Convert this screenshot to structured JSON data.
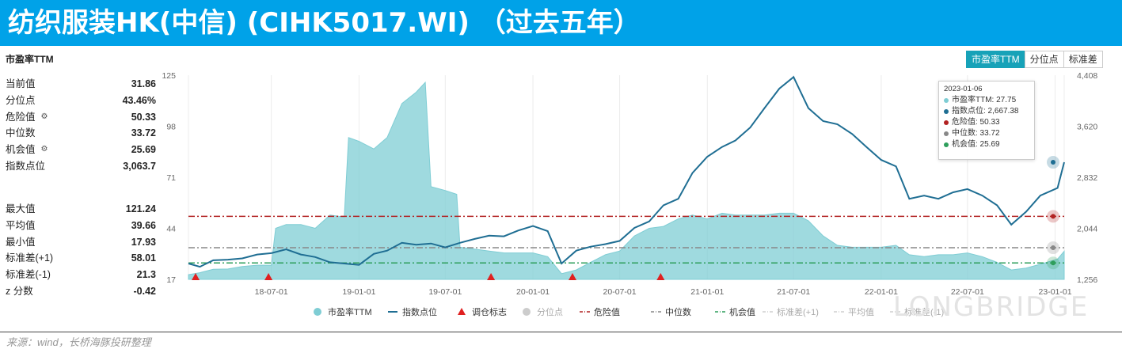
{
  "header": {
    "title": "纺织服装HK(中信) (CIHK5017.WI) （过去五年）"
  },
  "panel": {
    "title": "市盈率TTM"
  },
  "stats_top": [
    {
      "label": "当前值",
      "value": "31.86"
    },
    {
      "label": "分位点",
      "value": "43.46%"
    },
    {
      "label": "危险值",
      "value": "50.33",
      "icon": "gear-icon"
    },
    {
      "label": "中位数",
      "value": "33.72"
    },
    {
      "label": "机会值",
      "value": "25.69",
      "icon": "gear-icon"
    },
    {
      "label": "指数点位",
      "value": "3,063.7"
    }
  ],
  "stats_bottom": [
    {
      "label": "最大值",
      "value": "121.24"
    },
    {
      "label": "平均值",
      "value": "39.66"
    },
    {
      "label": "最小值",
      "value": "17.93"
    },
    {
      "label": "标准差(+1)",
      "value": "58.01"
    },
    {
      "label": "标准差(-1)",
      "value": "21.3"
    },
    {
      "label": "z 分数",
      "value": "-0.42"
    }
  ],
  "tabs": {
    "pe": "市盈率TTM",
    "pct": "分位点",
    "std": "标准差"
  },
  "tooltip": {
    "date": "2023-01-06",
    "rows": [
      {
        "label": "市盈率TTM: 27.75",
        "color": "#7fcdd4"
      },
      {
        "label": "指数点位: 2,667.38",
        "color": "#1f6e93"
      },
      {
        "label": "危险值: 50.33",
        "color": "#b22222"
      },
      {
        "label": "中位数: 33.72",
        "color": "#888888"
      },
      {
        "label": "机会值: 25.69",
        "color": "#2e9e5b"
      }
    ]
  },
  "watermark": "LONGBRIDGE",
  "source": "来源：wind，长桥海豚投研整理",
  "colors": {
    "pe": "#7fcdd4",
    "index": "#1f6e93",
    "danger": "#b22222",
    "median": "#888888",
    "chance": "#2e9e5b",
    "marker": "#e02020"
  },
  "chart_data": {
    "type": "area",
    "x_tick_labels": [
      "18-07-01",
      "19-01-01",
      "19-07-01",
      "20-01-01",
      "20-07-01",
      "21-01-01",
      "21-07-01",
      "22-01-01",
      "22-07-01",
      "23-01-01"
    ],
    "y_left_ticks": [
      "17",
      "44",
      "71",
      "98",
      "125"
    ],
    "y_left_lim": [
      17,
      125
    ],
    "y_right_ticks": [
      "1,256",
      "2,044",
      "2,832",
      "3,620",
      "4,408"
    ],
    "y_right_lim": [
      1256,
      4408
    ],
    "series": [
      {
        "name": "市盈率TTM",
        "type": "area",
        "axis": "left",
        "points": [
          [
            "2018-01-08",
            19.5
          ],
          [
            "2018-02-01",
            20.5
          ],
          [
            "2018-03-01",
            22.3
          ],
          [
            "2018-04-01",
            22.5
          ],
          [
            "2018-05-01",
            23.8
          ],
          [
            "2018-06-01",
            24.5
          ],
          [
            "2018-07-01",
            24.5
          ],
          [
            "2018-07-10",
            44
          ],
          [
            "2018-08-01",
            46
          ],
          [
            "2018-09-01",
            46
          ],
          [
            "2018-10-01",
            44
          ],
          [
            "2018-11-01",
            51
          ],
          [
            "2018-12-01",
            50
          ],
          [
            "2018-12-10",
            92
          ],
          [
            "2019-01-01",
            90
          ],
          [
            "2019-02-01",
            86
          ],
          [
            "2019-03-01",
            92
          ],
          [
            "2019-04-01",
            110
          ],
          [
            "2019-05-01",
            116
          ],
          [
            "2019-05-20",
            121.2
          ],
          [
            "2019-06-01",
            66
          ],
          [
            "2019-07-01",
            64
          ],
          [
            "2019-07-25",
            62
          ],
          [
            "2019-08-01",
            34
          ],
          [
            "2019-09-01",
            33
          ],
          [
            "2019-10-01",
            32
          ],
          [
            "2019-11-01",
            31
          ],
          [
            "2019-12-01",
            31
          ],
          [
            "2020-01-01",
            31
          ],
          [
            "2020-02-01",
            29
          ],
          [
            "2020-03-01",
            20
          ],
          [
            "2020-04-01",
            22
          ],
          [
            "2020-05-01",
            26
          ],
          [
            "2020-06-01",
            30
          ],
          [
            "2020-07-01",
            32
          ],
          [
            "2020-08-01",
            40
          ],
          [
            "2020-09-01",
            44
          ],
          [
            "2020-10-01",
            45
          ],
          [
            "2020-11-01",
            49
          ],
          [
            "2020-12-01",
            51
          ],
          [
            "2021-01-01",
            49
          ],
          [
            "2021-02-01",
            52
          ],
          [
            "2021-03-01",
            51
          ],
          [
            "2021-04-01",
            51
          ],
          [
            "2021-05-01",
            51
          ],
          [
            "2021-06-01",
            52
          ],
          [
            "2021-07-01",
            52
          ],
          [
            "2021-08-01",
            48
          ],
          [
            "2021-09-01",
            40
          ],
          [
            "2021-10-01",
            35
          ],
          [
            "2021-11-01",
            34
          ],
          [
            "2021-12-01",
            34
          ],
          [
            "2022-01-01",
            34
          ],
          [
            "2022-02-01",
            35
          ],
          [
            "2022-03-01",
            30
          ],
          [
            "2022-04-01",
            29
          ],
          [
            "2022-05-01",
            30
          ],
          [
            "2022-06-01",
            30
          ],
          [
            "2022-07-01",
            31
          ],
          [
            "2022-08-01",
            29
          ],
          [
            "2022-09-01",
            26
          ],
          [
            "2022-10-01",
            22
          ],
          [
            "2022-11-01",
            23
          ],
          [
            "2022-12-01",
            25
          ],
          [
            "2023-01-06",
            27.75
          ],
          [
            "2023-01-20",
            31.86
          ]
        ]
      },
      {
        "name": "指数点位",
        "type": "line",
        "axis": "right",
        "points": [
          [
            "2018-01-08",
            1500
          ],
          [
            "2018-02-01",
            1450
          ],
          [
            "2018-03-01",
            1550
          ],
          [
            "2018-04-01",
            1560
          ],
          [
            "2018-05-01",
            1580
          ],
          [
            "2018-06-01",
            1640
          ],
          [
            "2018-07-01",
            1660
          ],
          [
            "2018-08-01",
            1720
          ],
          [
            "2018-09-01",
            1640
          ],
          [
            "2018-10-01",
            1600
          ],
          [
            "2018-11-01",
            1520
          ],
          [
            "2018-12-01",
            1500
          ],
          [
            "2019-01-01",
            1480
          ],
          [
            "2019-02-01",
            1650
          ],
          [
            "2019-03-01",
            1700
          ],
          [
            "2019-04-01",
            1820
          ],
          [
            "2019-05-01",
            1790
          ],
          [
            "2019-06-01",
            1810
          ],
          [
            "2019-07-01",
            1750
          ],
          [
            "2019-08-01",
            1820
          ],
          [
            "2019-09-01",
            1880
          ],
          [
            "2019-10-01",
            1930
          ],
          [
            "2019-11-01",
            1920
          ],
          [
            "2019-12-01",
            2010
          ],
          [
            "2020-01-01",
            2080
          ],
          [
            "2020-02-01",
            2000
          ],
          [
            "2020-03-01",
            1500
          ],
          [
            "2020-04-01",
            1700
          ],
          [
            "2020-05-01",
            1760
          ],
          [
            "2020-06-01",
            1800
          ],
          [
            "2020-07-01",
            1850
          ],
          [
            "2020-08-01",
            2050
          ],
          [
            "2020-09-01",
            2150
          ],
          [
            "2020-10-01",
            2400
          ],
          [
            "2020-11-01",
            2500
          ],
          [
            "2020-12-01",
            2900
          ],
          [
            "2021-01-01",
            3150
          ],
          [
            "2021-02-01",
            3300
          ],
          [
            "2021-03-01",
            3400
          ],
          [
            "2021-04-01",
            3600
          ],
          [
            "2021-05-01",
            3900
          ],
          [
            "2021-06-01",
            4200
          ],
          [
            "2021-07-01",
            4380
          ],
          [
            "2021-08-01",
            3900
          ],
          [
            "2021-09-01",
            3700
          ],
          [
            "2021-10-01",
            3650
          ],
          [
            "2021-11-01",
            3500
          ],
          [
            "2021-12-01",
            3300
          ],
          [
            "2022-01-01",
            3100
          ],
          [
            "2022-02-01",
            3000
          ],
          [
            "2022-03-01",
            2500
          ],
          [
            "2022-04-01",
            2550
          ],
          [
            "2022-05-01",
            2500
          ],
          [
            "2022-06-01",
            2600
          ],
          [
            "2022-07-01",
            2650
          ],
          [
            "2022-08-01",
            2550
          ],
          [
            "2022-09-01",
            2400
          ],
          [
            "2022-10-01",
            2100
          ],
          [
            "2022-11-01",
            2300
          ],
          [
            "2022-12-01",
            2550
          ],
          [
            "2023-01-06",
            2667.38
          ],
          [
            "2023-01-20",
            3063.7
          ]
        ]
      },
      {
        "name": "危险值",
        "type": "hline",
        "axis": "left",
        "value": 50.33
      },
      {
        "name": "中位数",
        "type": "hline",
        "axis": "left",
        "value": 33.72
      },
      {
        "name": "机会值",
        "type": "hline",
        "axis": "left",
        "value": 25.69
      }
    ],
    "markers": [
      "2018-01-23",
      "2018-06-25",
      "2019-10-05",
      "2020-03-24",
      "2020-09-25"
    ],
    "legend": [
      "市盈率TTM",
      "指数点位",
      "调仓标志",
      "分位点",
      "危险值",
      "中位数",
      "机会值",
      "标准差(+1)",
      "平均值",
      "标准差(-1)"
    ],
    "legend_dim": [
      false,
      false,
      false,
      true,
      false,
      false,
      false,
      true,
      true,
      true
    ],
    "legend_position": "bottom",
    "grid": "vertical"
  }
}
